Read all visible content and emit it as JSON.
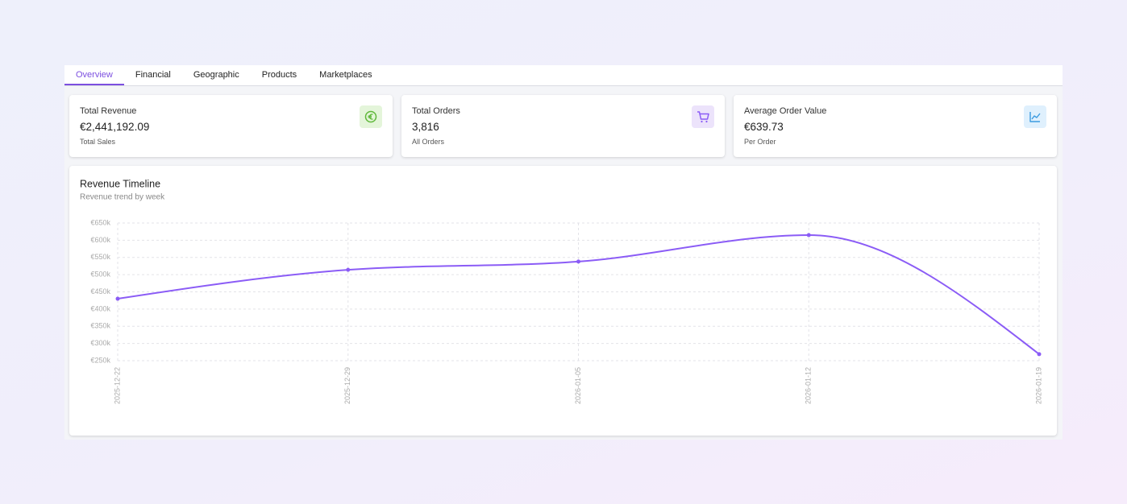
{
  "tabs": {
    "items": [
      "Overview",
      "Financial",
      "Geographic",
      "Products",
      "Marketplaces"
    ],
    "active": 0
  },
  "cards": [
    {
      "title": "Total Revenue",
      "value": "€2,441,192.09",
      "subtitle": "Total Sales"
    },
    {
      "title": "Total Orders",
      "value": "3,816",
      "subtitle": "All Orders"
    },
    {
      "title": "Average Order Value",
      "value": "€639.73",
      "subtitle": "Per Order"
    }
  ],
  "chart_data": {
    "type": "line",
    "title": "Revenue Timeline",
    "subtitle": "Revenue trend by week",
    "x": [
      "2025-12-22",
      "2025-12-29",
      "2026-01-05",
      "2026-01-12",
      "2026-01-19"
    ],
    "series": [
      {
        "name": "Revenue",
        "color": "#8b5cf6",
        "values": [
          430000,
          514000,
          538000,
          615000,
          269000
        ]
      }
    ],
    "ylim": [
      250000,
      650000
    ],
    "yticks": [
      {
        "value": 250000,
        "label": "€250k"
      },
      {
        "value": 300000,
        "label": "€300k"
      },
      {
        "value": 350000,
        "label": "€350k"
      },
      {
        "value": 400000,
        "label": "€400k"
      },
      {
        "value": 450000,
        "label": "€450k"
      },
      {
        "value": 500000,
        "label": "€500k"
      },
      {
        "value": 550000,
        "label": "€550k"
      },
      {
        "value": 600000,
        "label": "€600k"
      },
      {
        "value": 650000,
        "label": "€650k"
      }
    ],
    "grid": true
  }
}
